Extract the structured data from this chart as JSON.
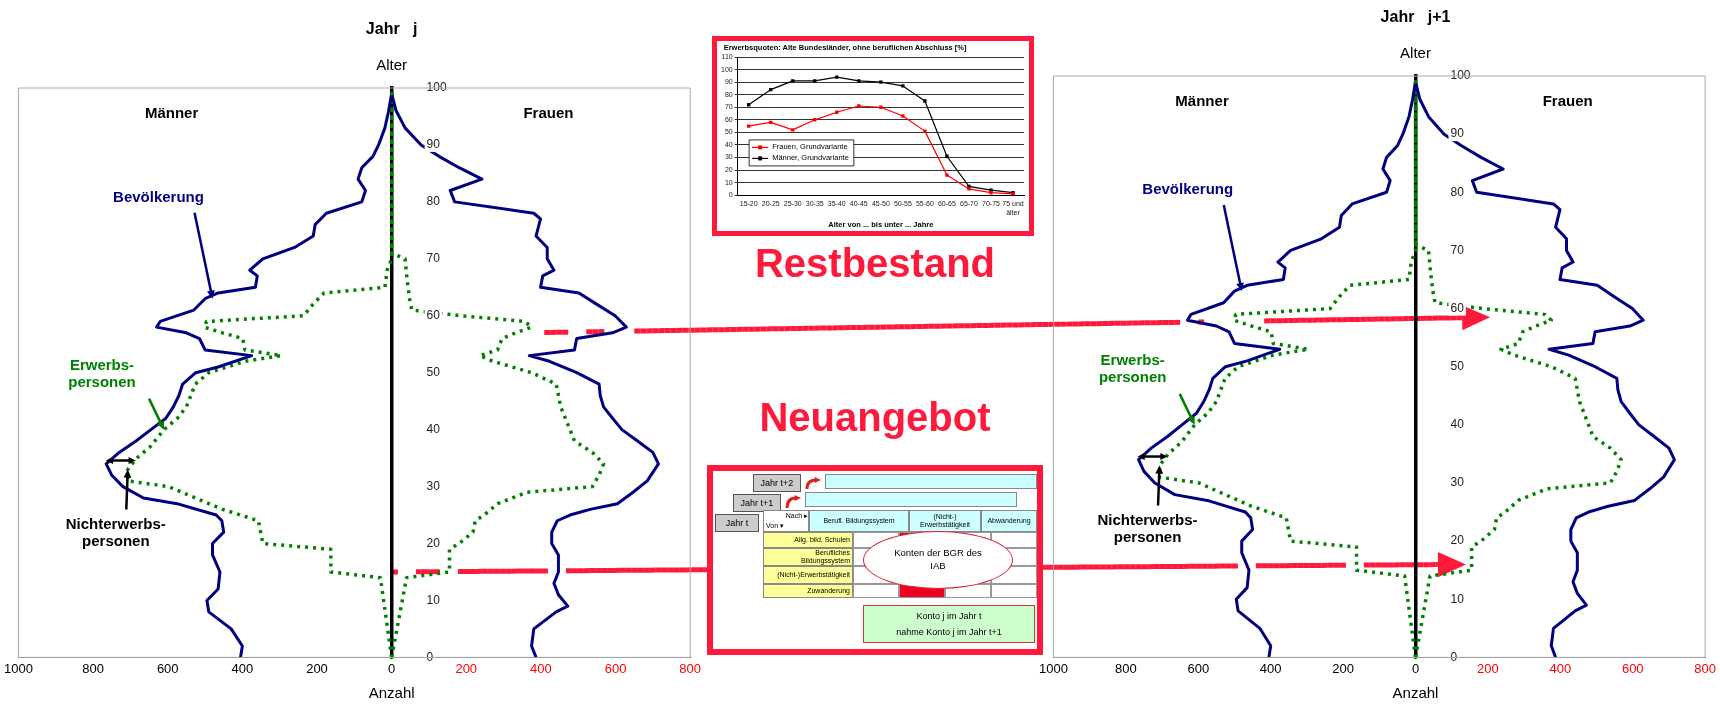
{
  "chart_data": [
    {
      "type": "line",
      "title": "Jahr   j",
      "xlabel": "Anzahl",
      "ylabel": "Alter",
      "xlim": [
        -1000,
        800
      ],
      "xticks": [
        {
          "value": -1000,
          "label": "1000"
        },
        {
          "value": -800,
          "label": "800"
        },
        {
          "value": -600,
          "label": "600"
        },
        {
          "value": -400,
          "label": "400"
        },
        {
          "value": -200,
          "label": "200"
        },
        0,
        200,
        400,
        600,
        800
      ],
      "ylim": [
        0,
        100
      ],
      "yticks": [
        0,
        10,
        20,
        30,
        40,
        50,
        60,
        70,
        80,
        90,
        100
      ],
      "marker": "none",
      "series": [
        {
          "color": "#000080",
          "line_style": "solid",
          "x": [
            -405,
            -400,
            -430,
            -490,
            -495,
            -465,
            -460,
            -480,
            -480,
            -450,
            -455,
            -470,
            -575,
            -665,
            -720,
            -750,
            -765,
            -730,
            -685,
            -645,
            -605,
            -585,
            -570,
            -560,
            -525,
            -465,
            -375,
            -500,
            -515,
            -550,
            -630,
            -620,
            -530,
            -500,
            -465,
            -365,
            -360,
            -380,
            -345,
            -260,
            -210,
            -205,
            -175,
            -80,
            -70,
            -90,
            -80,
            -50,
            -35,
            -18,
            -8,
            0,
            null,
            387,
            375,
            381,
            441,
            472,
            447,
            435,
            447,
            447,
            429,
            429,
            444,
            478,
            532,
            605,
            647,
            685,
            715,
            700,
            659,
            617,
            592,
            568,
            559,
            556,
            496,
            423,
            369,
            490,
            496,
            592,
            629,
            599,
            550,
            502,
            399,
            405,
            435,
            417,
            417,
            387,
            399,
            381,
            169,
            157,
            242,
            181,
            127,
            79,
            36,
            12,
            0
          ],
          "values": [
            0,
            2,
            5,
            8,
            10,
            12,
            15,
            18,
            20,
            22,
            24,
            25,
            27,
            28,
            30,
            32,
            34,
            36,
            38,
            40,
            42,
            44,
            46,
            48,
            50,
            51,
            53,
            54,
            56,
            57,
            58,
            59,
            61,
            63,
            64,
            65,
            67,
            68,
            70,
            72,
            74,
            76,
            78,
            80,
            82,
            84,
            86,
            88,
            90,
            93,
            96,
            99,
            null,
            0,
            2,
            5,
            8,
            9,
            11,
            13,
            15,
            18,
            20,
            22,
            24,
            25,
            26,
            27,
            29,
            31,
            34,
            36,
            38,
            40,
            42,
            44,
            46,
            48,
            50,
            52,
            53,
            54,
            56,
            57,
            58,
            60,
            62,
            64,
            65,
            67,
            68,
            70,
            72,
            74,
            77,
            78,
            80,
            82,
            84,
            86,
            88,
            90,
            93,
            96,
            99
          ]
        },
        {
          "color": "#008000",
          "line_style": "dotted",
          "x": [
            0,
            -30,
            -163,
            -163,
            -345,
            -357,
            -405,
            -453,
            -526,
            -598,
            -707,
            -707,
            -683,
            -647,
            -610,
            -574,
            -550,
            -538,
            -526,
            -490,
            -393,
            -296,
            -393,
            -399,
            -453,
            -502,
            -496,
            -236,
            -211,
            -181,
            -18,
            -12,
            0,
            0,
            null,
            0,
            40,
            155,
            155,
            181,
            218,
            224,
            248,
            284,
            363,
            538,
            556,
            568,
            538,
            490,
            478,
            453,
            441,
            375,
            272,
            236,
            284,
            296,
            332,
            375,
            357,
            187,
            54,
            48,
            42,
            36,
            0,
            0
          ],
          "values": [
            0,
            14,
            15,
            19,
            20,
            24,
            25,
            26,
            28,
            30,
            31,
            33,
            35,
            37,
            40,
            42,
            44,
            46,
            48,
            50,
            52,
            53,
            54,
            56,
            57,
            58,
            59,
            60,
            62,
            64,
            65,
            68,
            70,
            99,
            null,
            0,
            14,
            15,
            19,
            20,
            22,
            24,
            25,
            27,
            29,
            30,
            32,
            34,
            36,
            38,
            40,
            44,
            48,
            50,
            52,
            53,
            54,
            56,
            57,
            58,
            59,
            60,
            61,
            63,
            66,
            70,
            71,
            99
          ]
        }
      ],
      "annotations": [
        "Männer",
        "Frauen",
        {
          "text": "Bevölkerung",
          "x": -480,
          "y": 63
        },
        {
          "text": "Erwerbs-\npersonen",
          "x": -610,
          "y": 40
        },
        {
          "text": "Nichterwerbs-\npersonen",
          "x": -707,
          "y": 33
        }
      ]
    },
    {
      "type": "line",
      "title": "Erwerbsquoten: Alte Bundesländer, ohne beruflichen Abschluss [%]",
      "xlabel": "Alter von ... bis unter ... Jahre",
      "categories": [
        "15-20",
        "20-25",
        "25-30",
        "30-35",
        "35-40",
        "40-45",
        "45-50",
        "50-55",
        "55-60",
        "60-65",
        "65-70",
        "70-75",
        "75 und älter"
      ],
      "ylim": [
        0,
        110
      ],
      "yticks": [
        0,
        10,
        20,
        30,
        40,
        50,
        60,
        70,
        80,
        90,
        100,
        110
      ],
      "grid": "y",
      "legend": "left",
      "marker": "square",
      "series": [
        {
          "name": "Frauen, Grundvariante",
          "color": "#ff0000",
          "values": [
            55,
            58,
            52,
            60,
            66,
            71,
            70,
            63,
            51,
            16,
            5,
            2,
            1
          ]
        },
        {
          "name": "Männer, Grundvariante",
          "color": "#000000",
          "values": [
            72,
            84,
            91,
            91,
            94,
            91,
            90,
            87,
            75,
            31,
            7,
            4,
            2
          ]
        }
      ]
    },
    {
      "type": "line",
      "title": "Jahr   j+1",
      "xlabel": "Anzahl",
      "ylabel": "Alter",
      "xlim": [
        -1000,
        800
      ],
      "xticks": [
        {
          "value": -1000,
          "label": "1000"
        },
        {
          "value": -800,
          "label": "800"
        },
        {
          "value": -600,
          "label": "600"
        },
        {
          "value": -400,
          "label": "400"
        },
        {
          "value": -200,
          "label": "200"
        },
        0,
        200,
        400,
        600,
        800
      ],
      "ylim": [
        0,
        100
      ],
      "yticks": [
        0,
        10,
        20,
        30,
        40,
        50,
        60,
        70,
        80,
        90,
        100
      ],
      "marker": "none",
      "series": [
        {
          "color": "#000080",
          "line_style": "solid",
          "x": [
            -405,
            -400,
            -430,
            -490,
            -495,
            -465,
            -460,
            -480,
            -480,
            -450,
            -455,
            -470,
            -575,
            -665,
            -720,
            -750,
            -765,
            -730,
            -685,
            -645,
            -605,
            -585,
            -570,
            -560,
            -525,
            -465,
            -375,
            -500,
            -515,
            -550,
            -630,
            -620,
            -530,
            -500,
            -465,
            -365,
            -360,
            -380,
            -345,
            -260,
            -210,
            -205,
            -175,
            -80,
            -70,
            -90,
            -80,
            -50,
            -35,
            -18,
            -8,
            0,
            null,
            387,
            375,
            381,
            441,
            472,
            447,
            435,
            447,
            447,
            429,
            429,
            444,
            478,
            532,
            605,
            647,
            685,
            715,
            700,
            659,
            617,
            592,
            568,
            559,
            556,
            496,
            423,
            369,
            490,
            496,
            592,
            629,
            599,
            550,
            502,
            399,
            405,
            435,
            417,
            417,
            387,
            399,
            381,
            169,
            157,
            242,
            181,
            127,
            79,
            36,
            12,
            0
          ],
          "values": [
            0,
            2,
            5,
            8,
            10,
            12,
            15,
            18,
            20,
            22,
            24,
            25,
            27,
            28,
            30,
            32,
            34,
            36,
            38,
            40,
            42,
            44,
            46,
            48,
            50,
            51,
            53,
            54,
            56,
            57,
            58,
            59,
            61,
            63,
            64,
            65,
            67,
            68,
            70,
            72,
            74,
            76,
            78,
            80,
            82,
            84,
            86,
            88,
            90,
            93,
            96,
            99,
            null,
            0,
            2,
            5,
            8,
            9,
            11,
            13,
            15,
            18,
            20,
            22,
            24,
            25,
            26,
            27,
            29,
            31,
            34,
            36,
            38,
            40,
            42,
            44,
            46,
            48,
            50,
            52,
            53,
            54,
            56,
            57,
            58,
            60,
            62,
            64,
            65,
            67,
            68,
            70,
            72,
            74,
            77,
            78,
            80,
            82,
            84,
            86,
            88,
            90,
            93,
            96,
            99
          ]
        },
        {
          "color": "#008000",
          "line_style": "dotted",
          "x": [
            0,
            -30,
            -163,
            -163,
            -345,
            -357,
            -405,
            -453,
            -526,
            -598,
            -707,
            -707,
            -683,
            -647,
            -610,
            -574,
            -550,
            -538,
            -526,
            -490,
            -393,
            -296,
            -393,
            -399,
            -453,
            -502,
            -496,
            -236,
            -211,
            -181,
            -18,
            -12,
            0,
            0,
            null,
            0,
            40,
            155,
            155,
            181,
            218,
            224,
            248,
            284,
            363,
            538,
            556,
            568,
            538,
            490,
            478,
            453,
            441,
            375,
            272,
            236,
            284,
            296,
            332,
            375,
            357,
            187,
            54,
            48,
            42,
            36,
            0,
            0
          ],
          "values": [
            0,
            14,
            15,
            19,
            20,
            24,
            25,
            26,
            28,
            30,
            31,
            33,
            35,
            37,
            40,
            42,
            44,
            46,
            48,
            50,
            52,
            53,
            54,
            56,
            57,
            58,
            59,
            60,
            62,
            64,
            65,
            68,
            70,
            99,
            null,
            0,
            14,
            15,
            19,
            20,
            22,
            24,
            25,
            27,
            29,
            30,
            32,
            34,
            36,
            38,
            40,
            44,
            48,
            50,
            52,
            53,
            54,
            56,
            57,
            58,
            59,
            60,
            61,
            63,
            66,
            70,
            71,
            99
          ]
        }
      ],
      "annotations": [
        "Männer",
        "Frauen",
        {
          "text": "Bevölkerung",
          "x": -480,
          "y": 63
        },
        {
          "text": "Erwerbs-\npersonen",
          "x": -610,
          "y": 40
        },
        {
          "text": "Nichterwerbs-\npersonen",
          "x": -707,
          "y": 33
        }
      ]
    },
    {
      "type": "other",
      "annotations": [
        "Restbestand",
        "Neuangebot",
        "Jahr t",
        "Jahr t+1",
        "Jahr t+2",
        "Nach ▸",
        "Von ▾",
        "Berufl. Bildungssystem",
        "(Nicht-) Erwerbstätigkeit",
        "Abwanderung",
        "Allg. bild. Schulen",
        "Berufliches Bildungssystem",
        "(Nicht-)Erwerbstätigkeit",
        "Zuwanderung",
        "Konten der BGR des IAB",
        "Konto j im Jahr t",
        "nahme Konto j im Jahr t+1"
      ]
    }
  ]
}
